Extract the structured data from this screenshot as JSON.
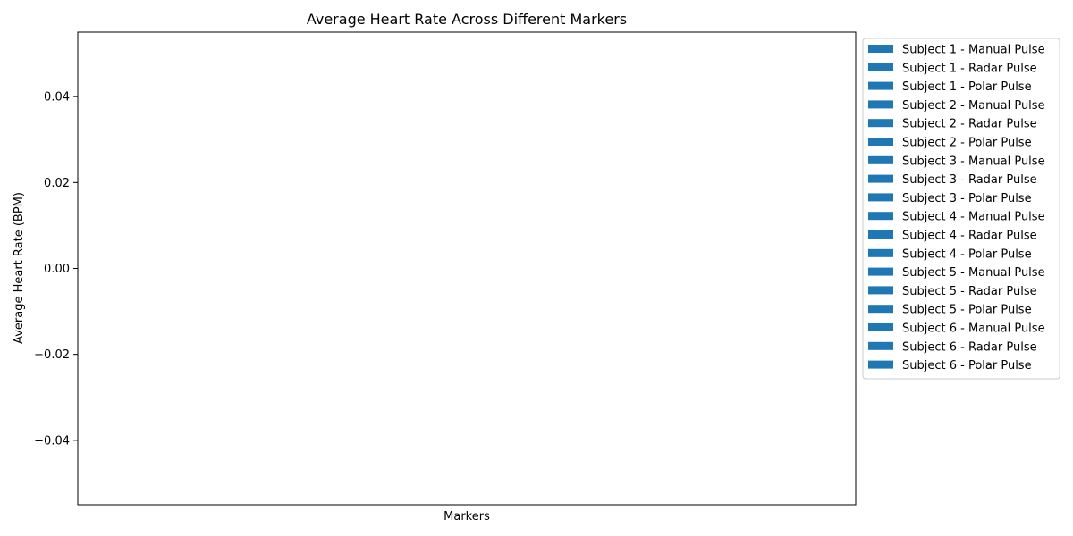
{
  "chart_data": {
    "type": "bar",
    "title": "Average Heart Rate Across Different Markers",
    "xlabel": "Markers",
    "ylabel": "Average Heart Rate (BPM)",
    "categories": [],
    "ylim": [
      -0.055,
      0.055
    ],
    "yticks": [
      -0.04,
      -0.02,
      0.0,
      0.02,
      0.04
    ],
    "ytick_labels": [
      "−0.04",
      "−0.02",
      "0.00",
      "0.02",
      "0.04"
    ],
    "grid": false,
    "legend_position": "outside-right-top",
    "series": [
      {
        "name": "Subject 1 - Manual Pulse",
        "color": "#1f77b4",
        "values": []
      },
      {
        "name": "Subject 1 - Radar Pulse",
        "color": "#1f77b4",
        "values": []
      },
      {
        "name": "Subject 1 - Polar Pulse",
        "color": "#1f77b4",
        "values": []
      },
      {
        "name": "Subject 2 - Manual Pulse",
        "color": "#1f77b4",
        "values": []
      },
      {
        "name": "Subject 2 - Radar Pulse",
        "color": "#1f77b4",
        "values": []
      },
      {
        "name": "Subject 2 - Polar Pulse",
        "color": "#1f77b4",
        "values": []
      },
      {
        "name": "Subject 3 - Manual Pulse",
        "color": "#1f77b4",
        "values": []
      },
      {
        "name": "Subject 3 - Radar Pulse",
        "color": "#1f77b4",
        "values": []
      },
      {
        "name": "Subject 3 - Polar Pulse",
        "color": "#1f77b4",
        "values": []
      },
      {
        "name": "Subject 4 - Manual Pulse",
        "color": "#1f77b4",
        "values": []
      },
      {
        "name": "Subject 4 - Radar Pulse",
        "color": "#1f77b4",
        "values": []
      },
      {
        "name": "Subject 4 - Polar Pulse",
        "color": "#1f77b4",
        "values": []
      },
      {
        "name": "Subject 5 - Manual Pulse",
        "color": "#1f77b4",
        "values": []
      },
      {
        "name": "Subject 5 - Radar Pulse",
        "color": "#1f77b4",
        "values": []
      },
      {
        "name": "Subject 5 - Polar Pulse",
        "color": "#1f77b4",
        "values": []
      },
      {
        "name": "Subject 6 - Manual Pulse",
        "color": "#1f77b4",
        "values": []
      },
      {
        "name": "Subject 6 - Radar Pulse",
        "color": "#1f77b4",
        "values": []
      },
      {
        "name": "Subject 6 - Polar Pulse",
        "color": "#1f77b4",
        "values": []
      }
    ]
  }
}
